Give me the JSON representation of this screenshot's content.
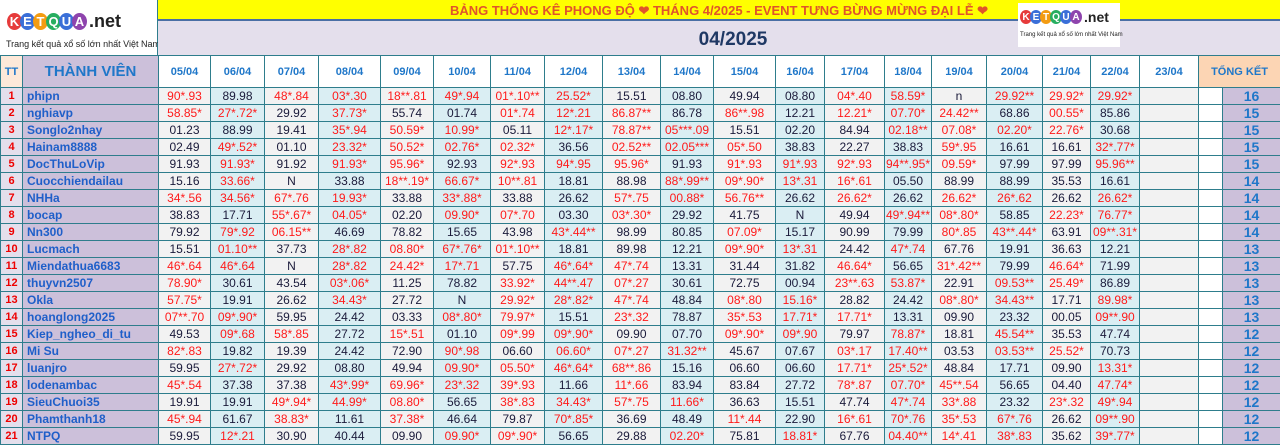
{
  "brand": {
    "logo_letters": [
      "K",
      "E",
      "T",
      "Q",
      "U",
      "A"
    ],
    "logo_suffix": ".net",
    "tagline": "Trang kết quả xổ số lớn nhất Việt Nam",
    "letter_colors": [
      "#e63b3b",
      "#3a6fd8",
      "#f39c12",
      "#27ae60",
      "#3a6fd8",
      "#8e44ad"
    ]
  },
  "banner": {
    "text": "BẢNG THỐNG KÊ PHONG ĐỘ ❤ THÁNG 4/2025 - EVENT TƯNG BỪNG MỪNG ĐẠI LỄ ❤"
  },
  "month": "04/2025",
  "colors": {
    "hit": "#ff1a1a",
    "normal": "#1a1a3a",
    "name": "#1f5fc9"
  },
  "table": {
    "headers": {
      "tt": "TT",
      "member": "THÀNH VIÊN",
      "total": "TỔNG KẾT"
    },
    "dates": [
      "05/04",
      "06/04",
      "07/04",
      "08/04",
      "09/04",
      "10/04",
      "11/04",
      "12/04",
      "13/04",
      "14/04",
      "15/04",
      "16/04",
      "17/04",
      "18/04",
      "19/04",
      "20/04",
      "21/04",
      "22/04",
      "23/04"
    ],
    "rows": [
      {
        "tt": "1",
        "name": "phipn",
        "values": [
          "90*.93",
          "89.98",
          "48*.84",
          "03*.30",
          "18**.81",
          "49*.94",
          "01*.10**",
          "25.52*",
          "15.51",
          "08.80",
          "49.94",
          "08.80",
          "04*.40",
          "58.59*",
          "n",
          "29.92**",
          "29.92*",
          "29.92*",
          ""
        ],
        "total": "16"
      },
      {
        "tt": "2",
        "name": "nghiavp",
        "values": [
          "58.85*",
          "27*.72*",
          "29.92",
          "37.73*",
          "55.74",
          "01.74",
          "01*.74",
          "12*.21",
          "86.87**",
          "86.78",
          "86**.98",
          "12.21",
          "12.21*",
          "07.70*",
          "24.42**",
          "68.86",
          "00.55*",
          "85.86",
          ""
        ],
        "total": "15"
      },
      {
        "tt": "3",
        "name": "Songlo2nhay",
        "values": [
          "01.23",
          "88.99",
          "19.41",
          "35*.94",
          "50.59*",
          "10.99*",
          "05.11",
          "12*.17*",
          "78.87**",
          "05***.09",
          "15.51",
          "02.20",
          "84.94",
          "02.18**",
          "07.08*",
          "02.20*",
          "22.76*",
          "30.68",
          ""
        ],
        "total": "15"
      },
      {
        "tt": "4",
        "name": "Hainam8888",
        "values": [
          "02.49",
          "49*.52*",
          "01.10",
          "23.32*",
          "50.52*",
          "02.76*",
          "02.32*",
          "36.56",
          "02.52**",
          "02.05***",
          "05*.50",
          "38.83",
          "22.27",
          "38.83",
          "59*.95",
          "16.61",
          "16.61",
          "32*.77*",
          ""
        ],
        "total": "15"
      },
      {
        "tt": "5",
        "name": "DocThuLoVip",
        "values": [
          "91.93",
          "91.93*",
          "91.92",
          "91.93*",
          "95.96*",
          "92.93",
          "92*.93",
          "94*.95",
          "95.96*",
          "91.93",
          "91*.93",
          "91*.93",
          "92*.93",
          "94**.95*",
          "09.59*",
          "97.99",
          "97.99",
          "95.96**",
          ""
        ],
        "total": "15"
      },
      {
        "tt": "6",
        "name": "Cuocchiendailau",
        "values": [
          "15.16",
          "33.66*",
          "N",
          "33.88",
          "18**.19*",
          "66.67*",
          "10**.81",
          "18.81",
          "88.98",
          "88*.99**",
          "09*.90*",
          "13*.31",
          "16*.61",
          "05.50",
          "88.99",
          "88.99",
          "35.53",
          "16.61",
          ""
        ],
        "total": "14"
      },
      {
        "tt": "7",
        "name": "NHHa",
        "values": [
          "34*.56",
          "34.56*",
          "67*.76",
          "19.93*",
          "33.88",
          "33*.88*",
          "33.88",
          "26.62",
          "57*.75",
          "00.88*",
          "56.76**",
          "26.62",
          "26.62*",
          "26.62",
          "26.62*",
          "26*.62",
          "26.62",
          "26.62*",
          ""
        ],
        "total": "14"
      },
      {
        "tt": "8",
        "name": "bocap",
        "values": [
          "38.83",
          "17.71",
          "55*.67*",
          "04.05*",
          "02.20",
          "09.90*",
          "07*.70",
          "03.30",
          "03*.30*",
          "29.92",
          "41.75",
          "N",
          "49.94",
          "49*.94**",
          "08*.80*",
          "58.85",
          "22.23*",
          "76.77*",
          ""
        ],
        "total": "14"
      },
      {
        "tt": "9",
        "name": "Nn300",
        "values": [
          "79.92",
          "79*.92",
          "06.15**",
          "46.69",
          "78.82",
          "15.65",
          "43.98",
          "43*.44**",
          "98.99",
          "80.85",
          "07.09*",
          "15.17",
          "90.99",
          "79.99",
          "80*.85",
          "43**.44*",
          "63.91",
          "09**.31*",
          ""
        ],
        "total": "14"
      },
      {
        "tt": "10",
        "name": "Lucmach",
        "values": [
          "15.51",
          "01.10**",
          "37.73",
          "28*.82",
          "08.80*",
          "67*.76*",
          "01*.10**",
          "18.81",
          "89.98",
          "12.21",
          "09*.90*",
          "13*.31",
          "24.42",
          "47*.74",
          "67.76",
          "19.91",
          "36.63",
          "12.21",
          ""
        ],
        "total": "13"
      },
      {
        "tt": "11",
        "name": "Miendathua6683",
        "values": [
          "46*.64",
          "46*.64",
          "N",
          "28*.82",
          "24.42*",
          "17*.71",
          "57.75",
          "46*.64*",
          "47*.74",
          "13.31",
          "31.44",
          "31.82",
          "46.64*",
          "56.65",
          "31*.42**",
          "79.99",
          "46.64*",
          "71.99",
          ""
        ],
        "total": "13"
      },
      {
        "tt": "12",
        "name": "thuyvn2507",
        "values": [
          "78.90*",
          "30.61",
          "43.54",
          "03*.06*",
          "11.25",
          "78.82",
          "33.92*",
          "44**.47",
          "07*.27",
          "30.61",
          "72.75",
          "00.94",
          "23**.63",
          "53.87*",
          "22.91",
          "09.53**",
          "25.49*",
          "86.89",
          ""
        ],
        "total": "13"
      },
      {
        "tt": "13",
        "name": "Okla",
        "values": [
          "57.75*",
          "19.91",
          "26.62",
          "34.43*",
          "27.72",
          "N",
          "29.92*",
          "28*.82*",
          "47*.74",
          "48.84",
          "08*.80",
          "15.16*",
          "28.82",
          "24.42",
          "08*.80*",
          "34.43**",
          "17.71",
          "89.98*",
          ""
        ],
        "total": "13"
      },
      {
        "tt": "14",
        "name": "hoanglong2025",
        "values": [
          "07**.70",
          "09*.90*",
          "59.95",
          "24.42",
          "03.33",
          "08*.80*",
          "79.97*",
          "15.51",
          "23*.32",
          "78.87",
          "35*.53",
          "17.71*",
          "17.71*",
          "13.31",
          "09.90",
          "23.32",
          "00.05",
          "09**.90",
          ""
        ],
        "total": "13"
      },
      {
        "tt": "15",
        "name": "Kiep_ngheo_di_tu",
        "values": [
          "49.53",
          "09*.68",
          "58*.85",
          "27.72",
          "15*.51",
          "01.10",
          "09*.99",
          "09*.90*",
          "09.90",
          "07.70",
          "09*.90*",
          "09*.90",
          "79.97",
          "78.87*",
          "18.81",
          "45.54**",
          "35.53",
          "47.74",
          ""
        ],
        "total": "12"
      },
      {
        "tt": "16",
        "name": "Mi Su",
        "values": [
          "82*.83",
          "19.82",
          "19.39",
          "24.42",
          "72.90",
          "90*.98",
          "06.60",
          "06.60*",
          "07*.27",
          "31.32**",
          "45.67",
          "07.67",
          "03*.17",
          "17.40**",
          "03.53",
          "03.53**",
          "25.52*",
          "70.73",
          ""
        ],
        "total": "12"
      },
      {
        "tt": "17",
        "name": "luanjro",
        "values": [
          "59.95",
          "27*.72*",
          "29.92",
          "08.80",
          "49.94",
          "09.90*",
          "05.50*",
          "46*.64*",
          "68**.86",
          "15.16",
          "06.60",
          "06.60",
          "17.71*",
          "25*.52*",
          "48.84",
          "17.71",
          "09.90",
          "13.31*",
          ""
        ],
        "total": "12"
      },
      {
        "tt": "18",
        "name": "lodenambac",
        "values": [
          "45*.54",
          "37.38",
          "37.38",
          "43*.99*",
          "69.96*",
          "23*.32",
          "39*.93",
          "11.66",
          "11*.66",
          "83.94",
          "83.84",
          "27.72",
          "78*.87",
          "07.70*",
          "45**.54",
          "56.65",
          "04.40",
          "47.74*",
          ""
        ],
        "total": "12"
      },
      {
        "tt": "19",
        "name": "SieuChuoi35",
        "values": [
          "19.91",
          "19.91",
          "49*.94*",
          "44.99*",
          "08.80*",
          "56.65",
          "38*.83",
          "34.43*",
          "57*.75",
          "11.66*",
          "36.63",
          "15.51",
          "47.74",
          "47*.74",
          "33*.88",
          "23.32",
          "23*.32",
          "49*.94",
          ""
        ],
        "total": "12"
      },
      {
        "tt": "20",
        "name": "Phamthanh18",
        "values": [
          "45*.94",
          "61.67",
          "38.83*",
          "11.61",
          "37.38*",
          "46.64",
          "79.87",
          "70*.85*",
          "36.69",
          "48.49",
          "11*.44",
          "22.90",
          "16*.61",
          "70*.76",
          "35*.53",
          "67*.76",
          "26.62",
          "09**.90",
          ""
        ],
        "total": "12"
      },
      {
        "tt": "21",
        "name": "NTPQ",
        "values": [
          "59.95",
          "12*.21",
          "30.90",
          "40.44",
          "09.90",
          "09.90*",
          "09*.90*",
          "56.65",
          "29.88",
          "02.20*",
          "75.81",
          "18.81*",
          "67.76",
          "04.40**",
          "14*.41",
          "38*.83",
          "35.62",
          "39*.77*",
          ""
        ],
        "total": "12"
      }
    ]
  }
}
